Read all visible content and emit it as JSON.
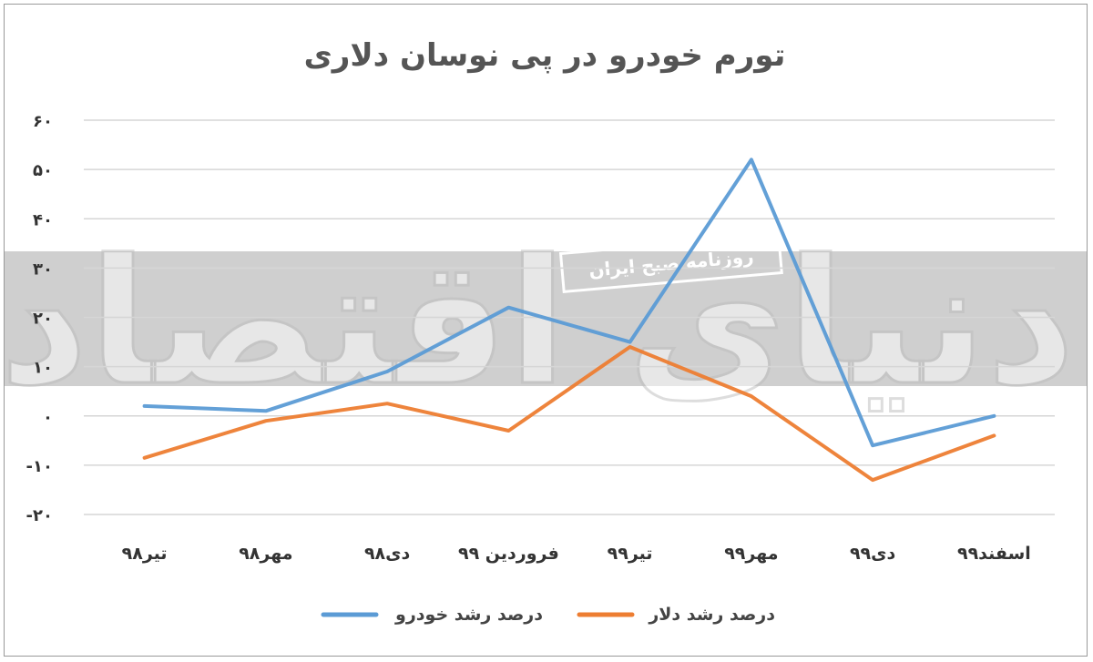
{
  "chart_data": {
    "type": "line",
    "title": "تورم خودرو در پی نوسان دلاری",
    "categories": [
      "تیر۹۸",
      "مهر۹۸",
      "دی۹۸",
      "فروردین ۹۹",
      "تیر۹۹",
      "مهر۹۹",
      "دی۹۹",
      "اسفند۹۹"
    ],
    "y_ticks": [
      60,
      50,
      40,
      30,
      20,
      10,
      0,
      -10,
      -20
    ],
    "y_tick_labels": [
      "۶۰",
      "۵۰",
      "۴۰",
      "۳۰",
      "۲۰",
      "۱۰",
      "۰",
      "-۱۰",
      "-۲۰"
    ],
    "ylim": [
      -20,
      60
    ],
    "grid": true,
    "legend_position": "bottom",
    "series": [
      {
        "name": "درصد رشد خودرو",
        "color": "#5b9bd5",
        "values": [
          2,
          1,
          9,
          22,
          15,
          52,
          -6,
          0
        ]
      },
      {
        "name": "درصد رشد دلار",
        "color": "#ed7d31",
        "values": [
          -8.5,
          -1,
          2.5,
          -3,
          14,
          4,
          -13,
          -4
        ]
      }
    ]
  },
  "watermark": {
    "text": "دنیای اقتصاد",
    "box_text": "روزنامه صبح ایران",
    "band_color": "#cfcfcf"
  }
}
